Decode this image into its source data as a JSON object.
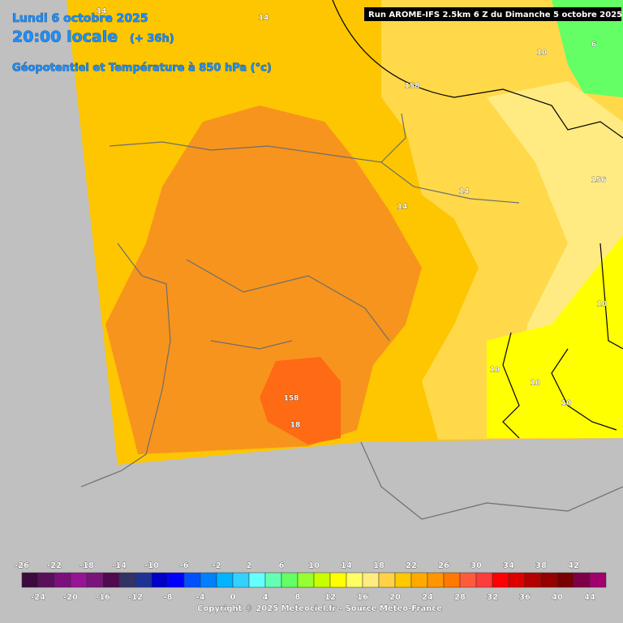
{
  "header": {
    "date": "Lundi 6 octobre 2025",
    "time": "20:00 locale",
    "lead": "(+ 36h)",
    "field": "Géopotentiel et Température à 850 hPa (°c)"
  },
  "run": "Run AROME-IFS 2.5km 6 Z du Dimanche 5 octobre 2025",
  "contour_labels": [
    "14",
    "14",
    "158",
    "14",
    "14",
    "156",
    "10",
    "6",
    "10",
    "10",
    "10",
    "10",
    "158",
    "18"
  ],
  "scale": {
    "labels": [
      -26,
      -24,
      -22,
      -20,
      -18,
      -16,
      -14,
      -12,
      -10,
      -8,
      -6,
      -4,
      -2,
      0,
      2,
      4,
      6,
      8,
      10,
      12,
      14,
      16,
      18,
      20,
      22,
      24,
      26,
      28,
      30,
      32,
      34,
      36,
      38,
      40,
      42,
      44
    ],
    "colors": [
      "#3d0a3d",
      "#5a0f5a",
      "#7d0f7d",
      "#961496",
      "#7a147a",
      "#500a50",
      "#323264",
      "#1e3296",
      "#0000c8",
      "#0000ff",
      "#0050ff",
      "#0080ff",
      "#00b4ff",
      "#32d2ff",
      "#64ffff",
      "#64ffb4",
      "#64ff64",
      "#96ff32",
      "#c8ff00",
      "#ffff00",
      "#ffff64",
      "#ffeb82",
      "#ffd246",
      "#ffc800",
      "#ffaa00",
      "#ff9600",
      "#ff7800",
      "#ff5a3c",
      "#ff3c3c",
      "#ff0000",
      "#dc0000",
      "#b40000",
      "#960000",
      "#780000",
      "#7d0046",
      "#a0006e"
    ]
  },
  "copyright": "Copyright © 2025 Meteociel.fr - Source Meteo-France"
}
